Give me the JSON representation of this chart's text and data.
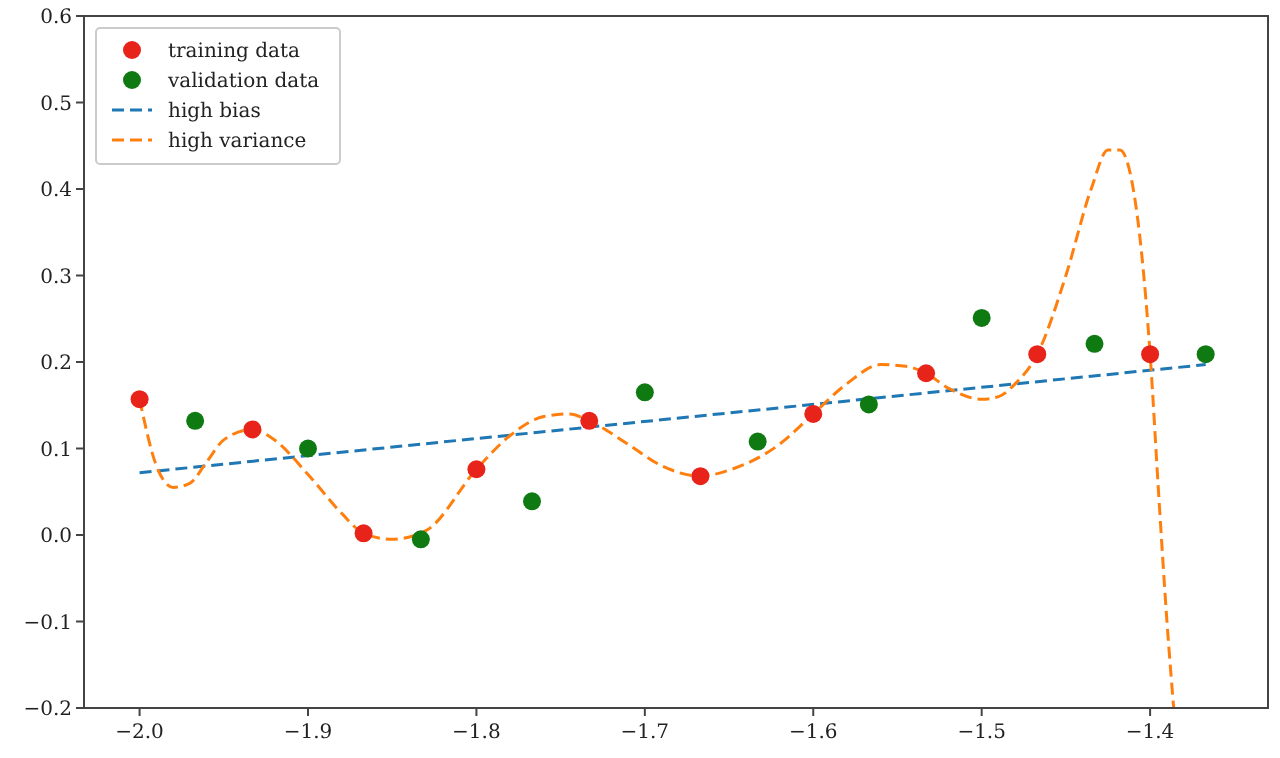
{
  "chart_data": {
    "type": "scatter",
    "xlim": [
      -2.033,
      -1.33
    ],
    "ylim": [
      -0.2,
      0.6
    ],
    "xticks": [
      {
        "value": -2.0,
        "label": "−2.0"
      },
      {
        "value": -1.9,
        "label": "−1.9"
      },
      {
        "value": -1.8,
        "label": "−1.8"
      },
      {
        "value": -1.7,
        "label": "−1.7"
      },
      {
        "value": -1.6,
        "label": "−1.6"
      },
      {
        "value": -1.5,
        "label": "−1.5"
      },
      {
        "value": -1.4,
        "label": "−1.4"
      }
    ],
    "yticks": [
      {
        "value": -0.2,
        "label": "−0.2"
      },
      {
        "value": -0.1,
        "label": "−0.1"
      },
      {
        "value": 0.0,
        "label": "0.0"
      },
      {
        "value": 0.1,
        "label": "0.1"
      },
      {
        "value": 0.2,
        "label": "0.2"
      },
      {
        "value": 0.3,
        "label": "0.3"
      },
      {
        "value": 0.4,
        "label": "0.4"
      },
      {
        "value": 0.5,
        "label": "0.5"
      },
      {
        "value": 0.6,
        "label": "0.6"
      }
    ],
    "legend": "top left",
    "grid": false,
    "series": [
      {
        "name": "training data",
        "marker": "circle",
        "color": "#e8231a",
        "x": [
          -2.0,
          -1.933,
          -1.867,
          -1.8,
          -1.733,
          -1.667,
          -1.6,
          -1.533,
          -1.467,
          -1.4
        ],
        "values": [
          0.157,
          0.122,
          0.002,
          0.076,
          0.132,
          0.068,
          0.14,
          0.187,
          0.209,
          0.209
        ]
      },
      {
        "name": "validation data",
        "marker": "circle",
        "color": "#0f7a12",
        "x": [
          -1.967,
          -1.9,
          -1.833,
          -1.767,
          -1.7,
          -1.633,
          -1.567,
          -1.5,
          -1.433,
          -1.367
        ],
        "values": [
          0.132,
          0.1,
          -0.005,
          0.039,
          0.165,
          0.108,
          0.151,
          0.251,
          0.221,
          0.209
        ]
      },
      {
        "name": "high bias",
        "type": "line",
        "line_style": "dashed",
        "color": "#1f77b4",
        "x": [
          -2.0,
          -1.367
        ],
        "values": [
          0.072,
          0.197
        ]
      },
      {
        "name": "high variance",
        "type": "line",
        "line_style": "dashed",
        "color": "#ff7f0e",
        "x": [
          -2.0,
          -1.99,
          -1.98,
          -1.97,
          -1.96,
          -1.95,
          -1.933,
          -1.92,
          -1.9,
          -1.88,
          -1.867,
          -1.85,
          -1.83,
          -1.8,
          -1.78,
          -1.76,
          -1.745,
          -1.733,
          -1.71,
          -1.69,
          -1.667,
          -1.65,
          -1.62,
          -1.6,
          -1.58,
          -1.56,
          -1.545,
          -1.533,
          -1.52,
          -1.5,
          -1.49,
          -1.48,
          -1.467,
          -1.45,
          -1.435,
          -1.425,
          -1.418,
          -1.41,
          -1.4,
          -1.395,
          -1.39,
          -1.386
        ],
        "values": [
          0.157,
          0.08,
          0.055,
          0.06,
          0.085,
          0.11,
          0.122,
          0.11,
          0.07,
          0.025,
          0.002,
          -0.005,
          0.005,
          0.076,
          0.115,
          0.137,
          0.14,
          0.132,
          0.105,
          0.08,
          0.068,
          0.075,
          0.105,
          0.14,
          0.175,
          0.197,
          0.195,
          0.187,
          0.17,
          0.157,
          0.16,
          0.175,
          0.209,
          0.3,
          0.4,
          0.445,
          0.445,
          0.4,
          0.209,
          0.05,
          -0.1,
          -0.2
        ]
      }
    ]
  }
}
